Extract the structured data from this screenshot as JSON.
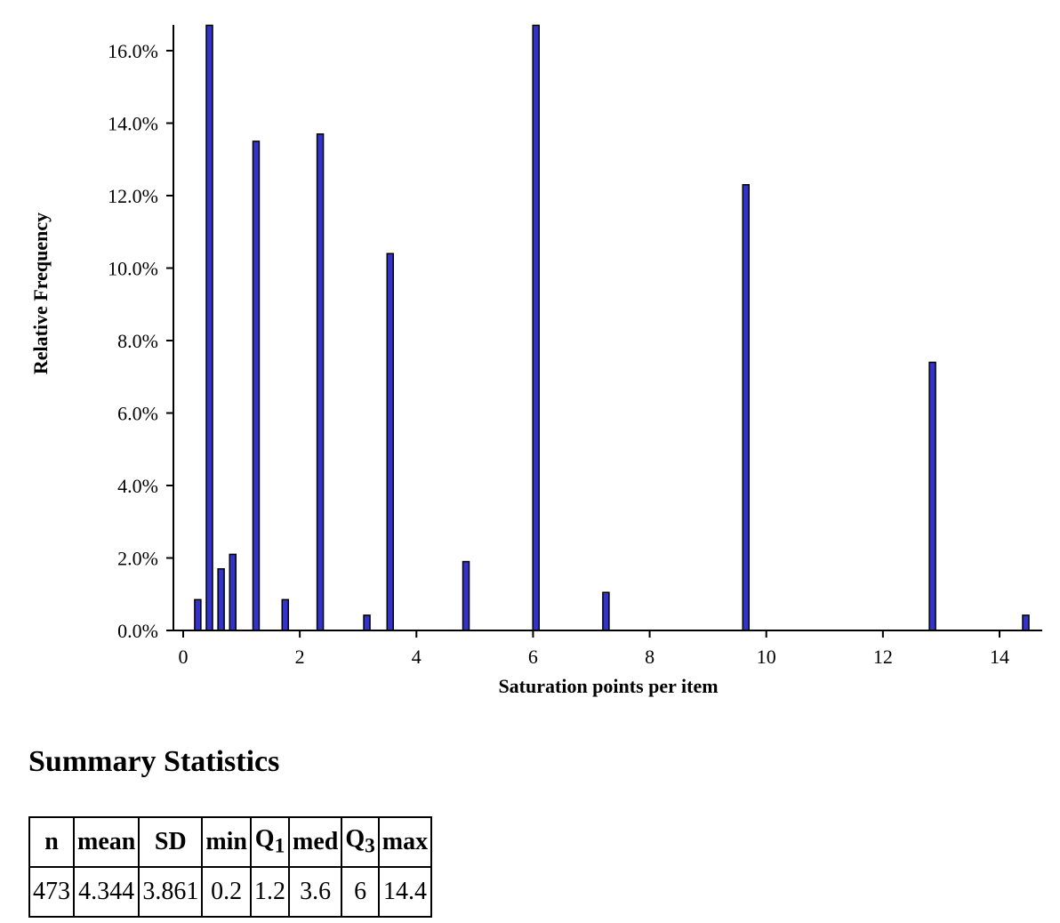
{
  "chart_data": {
    "type": "bar",
    "xlabel": "Saturation points per item",
    "ylabel": "Relative Frequency",
    "xlim": [
      0,
      14.6
    ],
    "ylim": [
      0,
      16.7
    ],
    "x_ticks": [
      0,
      2,
      4,
      6,
      8,
      10,
      12,
      14
    ],
    "y_ticks": [
      0,
      2,
      4,
      6,
      8,
      10,
      12,
      14,
      16
    ],
    "y_tick_labels": [
      "0.0%",
      "2.0%",
      "4.0%",
      "6.0%",
      "8.0%",
      "10.0%",
      "12.0%",
      "14.0%",
      "16.0%"
    ],
    "bar_color": "#3333cc",
    "x": [
      0.25,
      0.45,
      0.65,
      0.85,
      1.25,
      1.75,
      2.35,
      3.15,
      3.55,
      4.85,
      6.05,
      7.25,
      9.65,
      12.85,
      14.45
    ],
    "values": [
      0.85,
      16.7,
      1.7,
      2.1,
      13.5,
      0.85,
      13.7,
      0.42,
      10.4,
      1.9,
      16.7,
      1.05,
      12.3,
      7.4,
      0.42
    ]
  },
  "summary": {
    "title": "Summary Statistics",
    "headers": {
      "n": "n",
      "mean": "mean",
      "sd": "SD",
      "min": "min",
      "q1": "Q",
      "q1_sub": "1",
      "med": "med",
      "q3": "Q",
      "q3_sub": "3",
      "max": "max"
    },
    "values": {
      "n": "473",
      "mean": "4.344",
      "sd": "3.861",
      "min": "0.2",
      "q1": "1.2",
      "med": "3.6",
      "q3": "6",
      "max": "14.4"
    }
  }
}
